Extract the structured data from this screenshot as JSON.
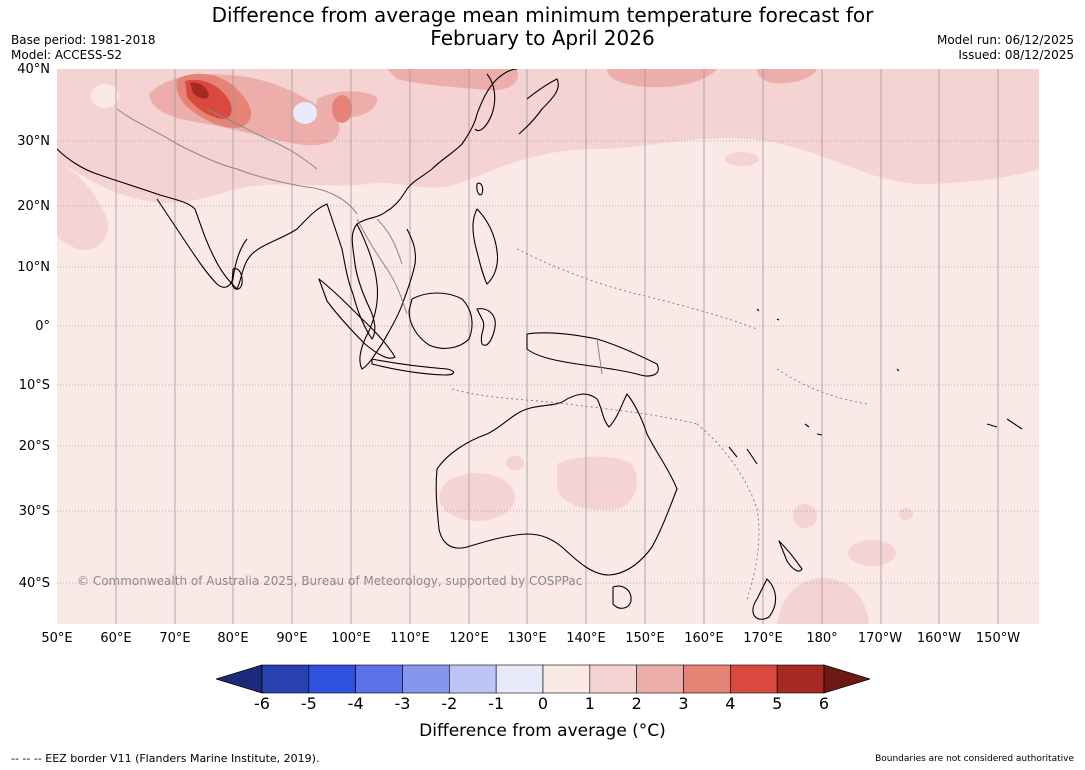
{
  "title": {
    "line1": "Difference from average mean minimum temperature forecast for",
    "line2": "February to April 2026"
  },
  "meta": {
    "base_period": "Base period: 1981-2018",
    "model": "Model: ACCESS-S2",
    "model_run": "Model run: 06/12/2025",
    "issued": "Issued: 08/12/2025"
  },
  "map": {
    "copyright": "© Commonwealth of Australia 2025, Bureau of Meteorology, supported by COSPPac",
    "lat_labels": [
      "40°N",
      "30°N",
      "20°N",
      "10°N",
      "0°",
      "10°S",
      "20°S",
      "30°S",
      "40°S"
    ],
    "lon_labels": [
      "50°E",
      "60°E",
      "70°E",
      "80°E",
      "90°E",
      "100°E",
      "110°E",
      "120°E",
      "130°E",
      "140°E",
      "150°E",
      "160°E",
      "170°E",
      "180°",
      "170°W",
      "160°W",
      "150°W"
    ],
    "colors": {
      "bin_0_1": "#fbe9e7",
      "bin_1_2": "#f4d3d2",
      "bin_2_3": "#edaeab",
      "bin_3_4": "#e58377",
      "bin_4_5": "#d9493d",
      "bin_5_6": "#a62a24",
      "bin_neg1_0": "#e8eafb"
    }
  },
  "colorbar": {
    "tick_labels": [
      "-6",
      "-5",
      "-4",
      "-3",
      "-2",
      "-1",
      "0",
      "1",
      "2",
      "3",
      "4",
      "5",
      "6"
    ],
    "colors": [
      "#1c2a7a",
      "#2840b0",
      "#3050e0",
      "#5b72e6",
      "#8596ec",
      "#bcc5f5",
      "#e8eafb",
      "#fbe9e7",
      "#f4d3d2",
      "#edaeab",
      "#e58377",
      "#d9493d",
      "#a62a24",
      "#6e1a14"
    ],
    "label": "Difference from average (°C)"
  },
  "footer": {
    "eez": "--  --  -- EEZ border V11 (Flanders Marine Institute, 2019).",
    "boundaries": "Boundaries are not considered authoritative"
  }
}
